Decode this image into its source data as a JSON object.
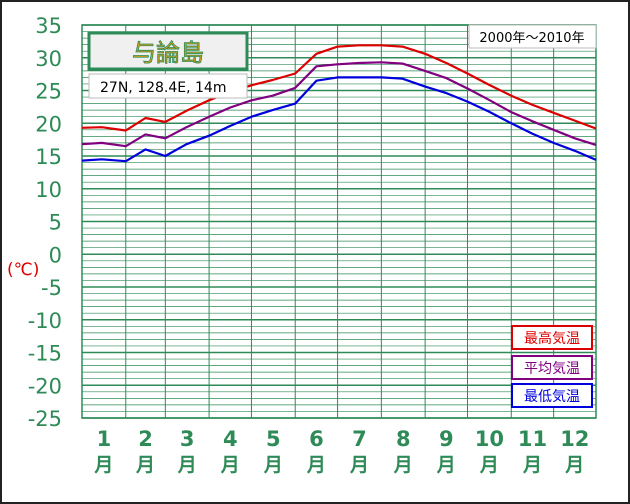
{
  "chart_data": {
    "type": "line",
    "station": "与論島",
    "location": "27N, 128.4E, 14m",
    "period": "2000年〜2010年",
    "ylabel": "(℃)",
    "ylim": [
      -25,
      35
    ],
    "y_ticks": [
      "35",
      "30",
      "25",
      "20",
      "15",
      "10",
      "5",
      "0",
      "-5",
      "-10",
      "-15",
      "-20",
      "-25"
    ],
    "months": [
      "1",
      "2",
      "3",
      "4",
      "5",
      "6",
      "7",
      "8",
      "9",
      "10",
      "11",
      "12"
    ],
    "month_suffix": "月",
    "x_days": [
      1,
      15,
      32,
      46,
      60,
      75,
      91,
      106,
      121,
      136,
      152,
      167,
      182,
      197,
      213,
      228,
      244,
      259,
      274,
      289,
      305,
      320,
      335,
      350,
      365
    ],
    "series": [
      {
        "name": "最高気温",
        "color": "#dd0000",
        "values": [
          19.3,
          19.4,
          18.9,
          20.8,
          20.2,
          21.9,
          23.5,
          24.8,
          25.8,
          26.6,
          27.6,
          30.6,
          31.7,
          31.9,
          31.9,
          31.7,
          30.6,
          29.2,
          27.6,
          25.9,
          24.2,
          22.8,
          21.6,
          20.4,
          19.2
        ]
      },
      {
        "name": "平均気温",
        "color": "#800080",
        "values": [
          16.8,
          17.0,
          16.5,
          18.3,
          17.7,
          19.4,
          21.0,
          22.4,
          23.5,
          24.2,
          25.4,
          28.7,
          29.0,
          29.2,
          29.3,
          29.1,
          28.0,
          26.9,
          25.3,
          23.6,
          21.7,
          20.3,
          19.0,
          17.7,
          16.7
        ]
      },
      {
        "name": "最低気温",
        "color": "#0000dd",
        "values": [
          14.3,
          14.5,
          14.2,
          16.0,
          15.0,
          16.8,
          18.1,
          19.6,
          21.0,
          22.0,
          23.0,
          26.5,
          27.0,
          27.0,
          27.0,
          26.8,
          25.6,
          24.6,
          23.3,
          21.8,
          20.0,
          18.4,
          17.0,
          15.8,
          14.4
        ]
      }
    ]
  }
}
